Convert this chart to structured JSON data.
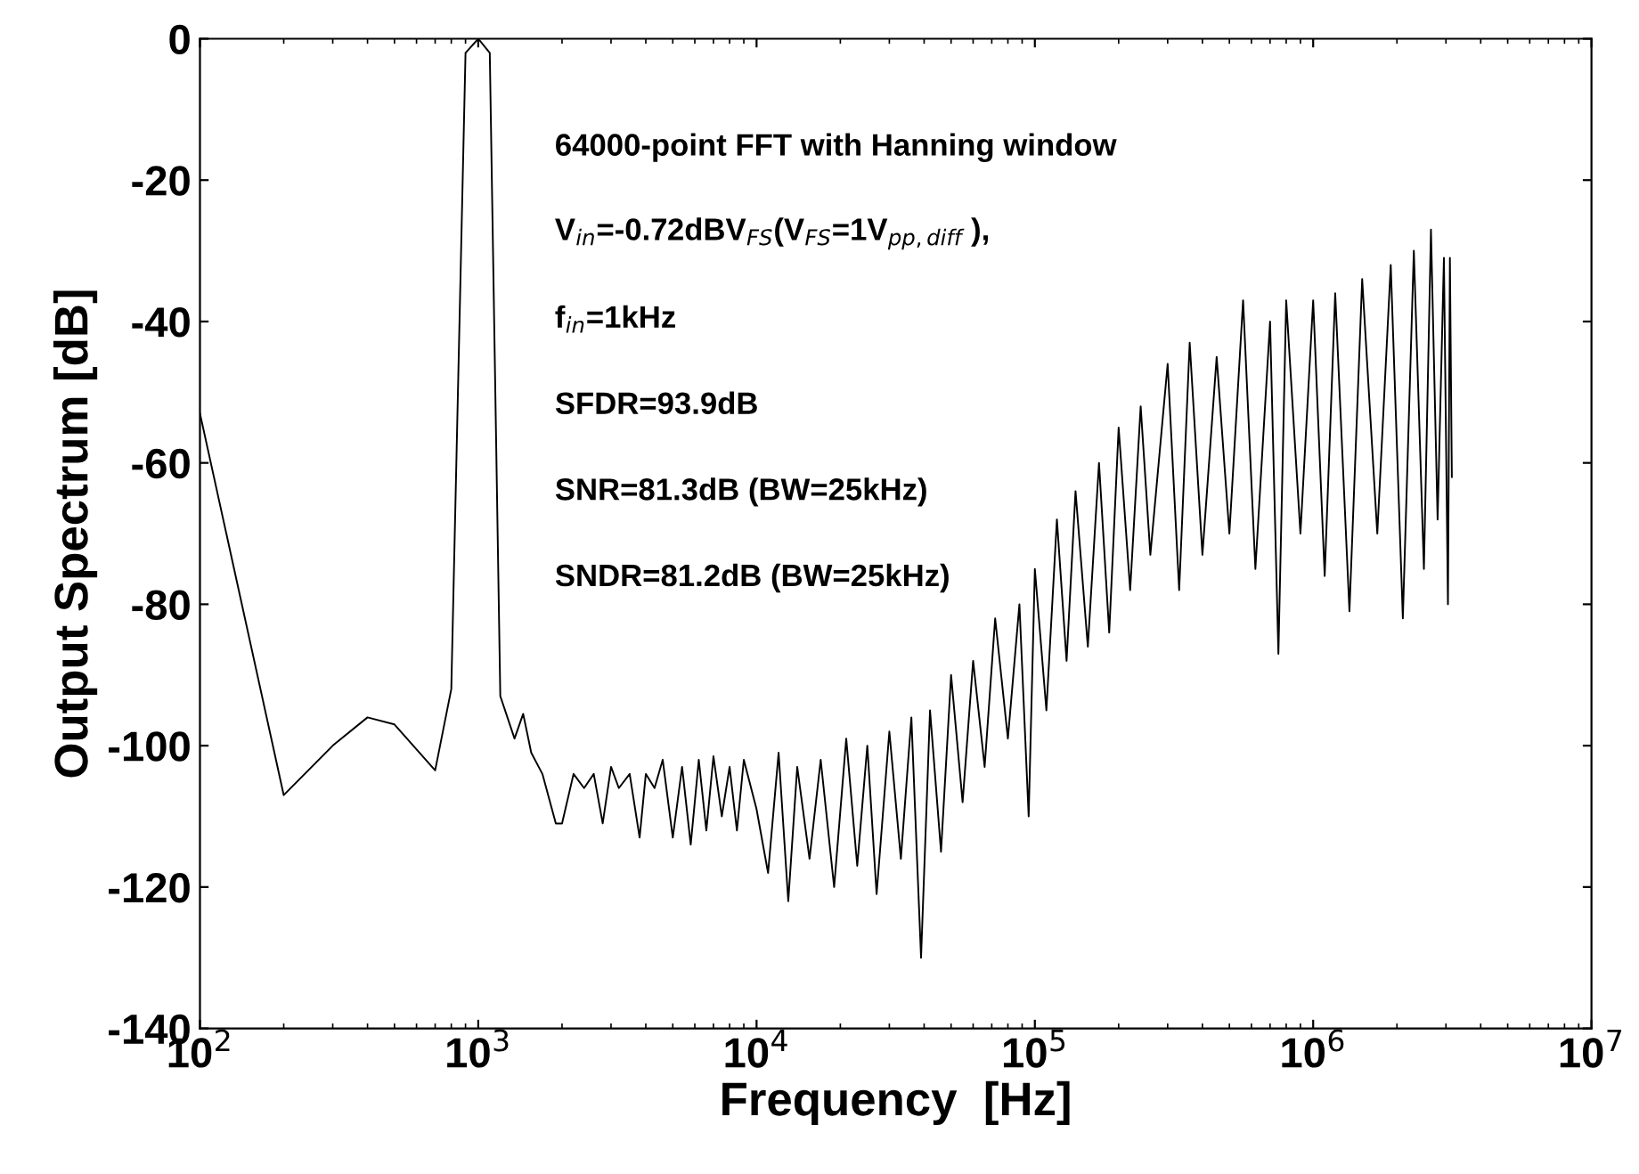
{
  "chart_data": {
    "type": "line",
    "xlabel": "Frequency  [Hz]",
    "ylabel": "Output Spectrum [dB]",
    "log": "x",
    "grid": false,
    "legend": false,
    "marker": "none",
    "line_style": "solid",
    "xlim": [
      100,
      10000000
    ],
    "ylim": [
      -140,
      0
    ],
    "xticks": [
      {
        "value": 100,
        "label": "10$^{2}$"
      },
      {
        "value": 1000,
        "label": "10$^{3}$"
      },
      {
        "value": 10000,
        "label": "10$^{4}$"
      },
      {
        "value": 100000,
        "label": "10$^{5}$"
      },
      {
        "value": 1000000,
        "label": "10$^{6}$"
      },
      {
        "value": 10000000,
        "label": "10$^{7}$"
      }
    ],
    "yticks": [
      -140,
      -120,
      -100,
      -80,
      -60,
      -40,
      -20,
      0
    ],
    "annotations": [
      "64000-point FFT with Hanning window",
      "V$_{in}$=-0.72dBV$_{FS}$(V$_{FS}$=1V$_{pp,diff}$ ),",
      "f$_{in}$=1kHz",
      "SFDR=93.9dB",
      "SNR=81.3dB (BW=25kHz)",
      "SNDR=81.2dB (BW=25kHz)"
    ],
    "series": [
      {
        "color": "#000000",
        "x": [
          100,
          200,
          300,
          400,
          500,
          700,
          800,
          900,
          1000,
          1100,
          1200,
          1350,
          1450,
          1550,
          1700,
          1900,
          2000,
          2200,
          2400,
          2600,
          2800,
          3000,
          3200,
          3500,
          3800,
          4000,
          4300,
          4600,
          5000,
          5400,
          5800,
          6200,
          6600,
          7000,
          7500,
          8000,
          8500,
          9000,
          10000,
          11000,
          12000,
          13000,
          14000,
          15500,
          17000,
          19000,
          21000,
          23000,
          25000,
          27000,
          30000,
          33000,
          36000,
          39000,
          42000,
          46000,
          50000,
          55000,
          60000,
          66000,
          72000,
          80000,
          88000,
          95000,
          100000,
          110000,
          120000,
          130000,
          140000,
          155000,
          170000,
          185000,
          200000,
          220000,
          240000,
          260000,
          300000,
          330000,
          360000,
          400000,
          450000,
          500000,
          560000,
          620000,
          700000,
          750000,
          800000,
          900000,
          1000000,
          1100000,
          1200000,
          1350000,
          1500000,
          1700000,
          1900000,
          2100000,
          2300000,
          2500000,
          2650000,
          2800000,
          2950000,
          3050000,
          3100000,
          3150000
        ],
        "values": [
          -53,
          -107,
          -100,
          -96,
          -97,
          -103.5,
          -92,
          -2,
          0,
          -2,
          -93,
          -99,
          -95.5,
          -101,
          -104,
          -111,
          -111,
          -104,
          -106,
          -104,
          -111,
          -103,
          -106,
          -104,
          -113,
          -104,
          -106,
          -102,
          -113,
          -103,
          -114,
          -102,
          -112,
          -101.5,
          -110,
          -103,
          -112,
          -102,
          -109,
          -118,
          -101,
          -122,
          -103,
          -116,
          -102,
          -120,
          -99,
          -117,
          -100,
          -121,
          -98,
          -116,
          -96,
          -130,
          -95,
          -115,
          -90,
          -108,
          -88,
          -103,
          -82,
          -99,
          -80,
          -110,
          -75,
          -95,
          -68,
          -88,
          -64,
          -86,
          -60,
          -84,
          -55,
          -78,
          -52,
          -73,
          -46,
          -78,
          -43,
          -73,
          -45,
          -70,
          -37,
          -75,
          -40,
          -87,
          -37,
          -70,
          -37,
          -76,
          -36,
          -81,
          -34,
          -70,
          -32,
          -82,
          -30,
          -75,
          -27,
          -68,
          -31,
          -80,
          -31,
          -62
        ]
      }
    ]
  }
}
